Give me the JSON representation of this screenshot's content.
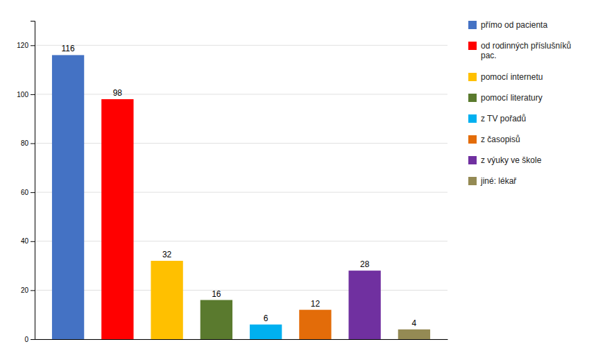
{
  "chart_data": {
    "type": "bar",
    "categories": [
      "přímo od pacienta",
      "od rodinných příslušníků\npac.",
      "pomocí internetu",
      "pomocí literatury",
      "z TV pořadů",
      "z časopisů",
      "z výuky ve škole",
      "jiné: lékař"
    ],
    "values": [
      116,
      98,
      32,
      16,
      6,
      12,
      28,
      4
    ],
    "colors": [
      "#4472C4",
      "#FF0000",
      "#FFC000",
      "#5A7A2E",
      "#00B0F0",
      "#E36C09",
      "#7030A0",
      "#948A54"
    ],
    "ylim": [
      0,
      130
    ],
    "yticks": [
      0,
      20,
      40,
      60,
      80,
      100,
      120
    ],
    "grid": true,
    "legend": "right",
    "data_labels": true,
    "tick_labels": "y"
  }
}
